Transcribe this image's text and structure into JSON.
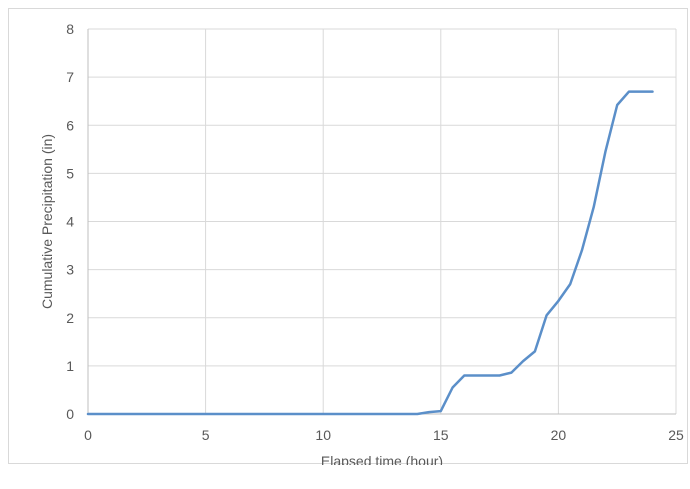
{
  "chart_data": {
    "type": "line",
    "title": "",
    "xlabel": "Elapsed time (hour)",
    "ylabel": "Cumulative Precipitation (in)",
    "xlim": [
      0,
      25
    ],
    "ylim": [
      0,
      8
    ],
    "xticks": [
      0,
      5,
      10,
      15,
      20,
      25
    ],
    "yticks": [
      0,
      1,
      2,
      3,
      4,
      5,
      6,
      7,
      8
    ],
    "grid": true,
    "legend": "none",
    "color": "#5b8fc9",
    "series": [
      {
        "x": [
          0,
          14,
          14.5,
          15,
          15.5,
          16,
          16.5,
          17,
          17.5,
          18,
          18.5,
          19,
          19.5,
          20,
          20.5,
          21,
          21.5,
          22,
          22.5,
          23,
          23.5,
          24
        ],
        "values": [
          0,
          0,
          0.04,
          0.06,
          0.55,
          0.8,
          0.8,
          0.8,
          0.8,
          0.86,
          1.1,
          1.3,
          2.05,
          2.35,
          2.7,
          3.4,
          4.3,
          5.45,
          6.42,
          6.7,
          6.7,
          6.7
        ]
      }
    ]
  }
}
